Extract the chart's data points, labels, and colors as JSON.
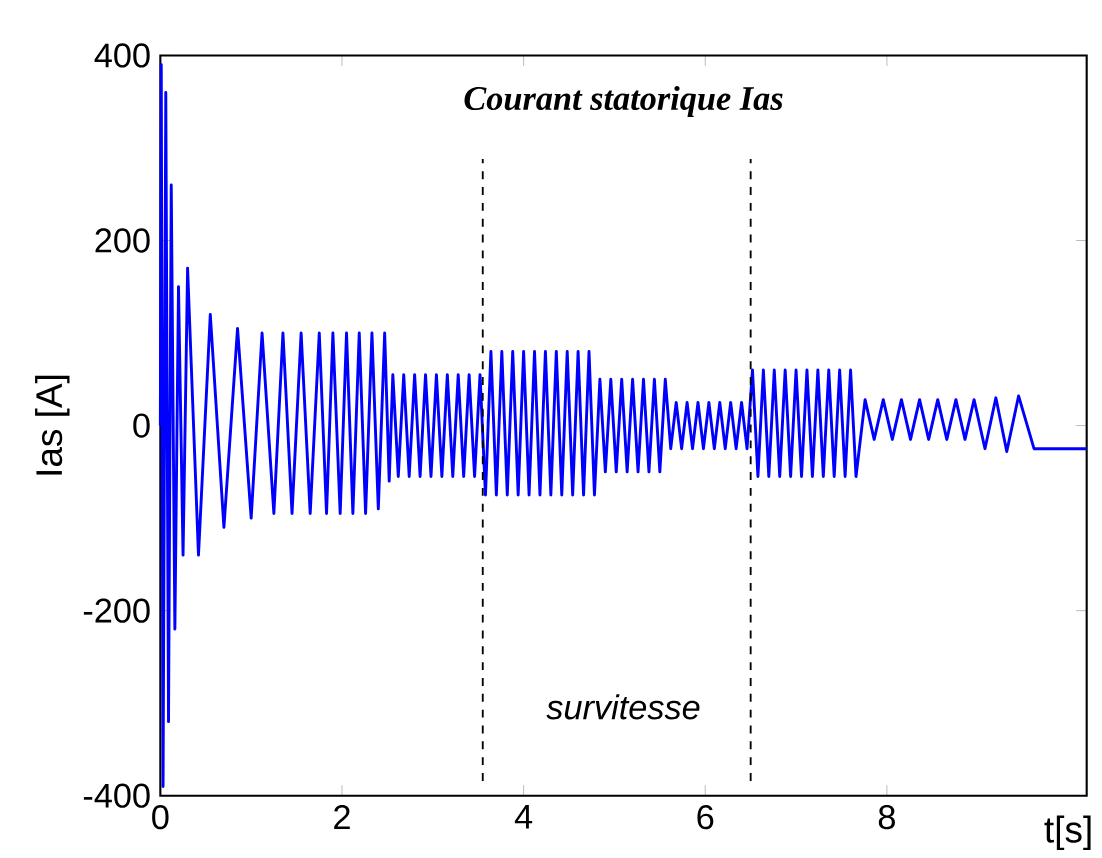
{
  "chart_data": {
    "type": "line",
    "title": "Courant statorique Ias",
    "xlabel": "t[s]",
    "ylabel": "Ias [A]",
    "xlim": [
      0,
      10.2
    ],
    "ylim": [
      -400,
      400
    ],
    "xticks": [
      0,
      2,
      4,
      6,
      8
    ],
    "yticks": [
      -400,
      -200,
      0,
      200,
      400
    ],
    "grid": false,
    "ref_lines": [
      {
        "axis": "x",
        "value": 3.55,
        "color": "#000000",
        "line_style": "dashed"
      },
      {
        "axis": "x",
        "value": 6.5,
        "color": "#000000",
        "line_style": "dashed"
      }
    ],
    "annotations": [
      "survitesse"
    ],
    "series": [
      {
        "color": "#0000ff",
        "x": [
          0,
          0.01,
          0.03,
          0.06,
          0.09,
          0.12,
          0.16,
          0.2,
          0.25,
          0.3,
          0.42,
          0.55,
          0.7,
          0.85,
          1.0,
          1.12,
          1.25,
          1.35,
          1.45,
          1.55,
          1.65,
          1.75,
          1.83,
          1.9,
          1.98,
          2.05,
          2.12,
          2.19,
          2.26,
          2.33,
          2.4,
          2.47,
          2.52,
          2.56,
          2.62,
          2.68,
          2.74,
          2.8,
          2.86,
          2.92,
          2.98,
          3.04,
          3.1,
          3.16,
          3.22,
          3.28,
          3.34,
          3.4,
          3.46,
          3.52,
          3.58,
          3.64,
          3.7,
          3.76,
          3.82,
          3.88,
          3.94,
          4.0,
          4.06,
          4.12,
          4.18,
          4.24,
          4.3,
          4.36,
          4.42,
          4.48,
          4.54,
          4.6,
          4.66,
          4.72,
          4.78,
          4.84,
          4.9,
          4.96,
          5.02,
          5.08,
          5.14,
          5.2,
          5.26,
          5.32,
          5.38,
          5.44,
          5.5,
          5.56,
          5.62,
          5.68,
          5.74,
          5.8,
          5.86,
          5.92,
          5.98,
          6.04,
          6.1,
          6.16,
          6.22,
          6.28,
          6.34,
          6.4,
          6.46,
          6.52,
          6.58,
          6.64,
          6.7,
          6.76,
          6.82,
          6.88,
          6.94,
          7.0,
          7.06,
          7.12,
          7.18,
          7.24,
          7.3,
          7.36,
          7.42,
          7.48,
          7.54,
          7.6,
          7.66,
          7.76,
          7.86,
          7.96,
          8.06,
          8.16,
          8.26,
          8.36,
          8.46,
          8.56,
          8.66,
          8.76,
          8.86,
          8.96,
          9.08,
          9.2,
          9.32,
          9.45,
          9.62,
          9.75,
          10.2
        ],
        "values": [
          0,
          390,
          -390,
          360,
          -320,
          260,
          -220,
          150,
          -140,
          170,
          -140,
          120,
          -110,
          105,
          -100,
          100,
          -95,
          100,
          -95,
          100,
          -95,
          100,
          -95,
          100,
          -95,
          100,
          -95,
          100,
          -95,
          100,
          -90,
          100,
          -60,
          55,
          -55,
          55,
          -55,
          55,
          -55,
          55,
          -55,
          55,
          -55,
          55,
          -55,
          55,
          -55,
          55,
          -55,
          55,
          -75,
          80,
          -75,
          80,
          -75,
          80,
          -75,
          80,
          -75,
          80,
          -75,
          80,
          -75,
          80,
          -75,
          80,
          -75,
          80,
          -75,
          80,
          -75,
          50,
          -50,
          50,
          -50,
          50,
          -50,
          50,
          -50,
          50,
          -50,
          50,
          -50,
          50,
          -25,
          25,
          -25,
          25,
          -25,
          25,
          -25,
          25,
          -25,
          25,
          -25,
          25,
          -25,
          25,
          -25,
          60,
          -55,
          60,
          -55,
          60,
          -55,
          60,
          -55,
          60,
          -55,
          60,
          -55,
          60,
          -55,
          60,
          -55,
          60,
          -55,
          60,
          -55,
          28,
          -15,
          28,
          -15,
          28,
          -15,
          28,
          -15,
          28,
          -15,
          28,
          -15,
          28,
          -25,
          30,
          -28,
          32,
          -25,
          -25,
          -25
        ]
      }
    ]
  }
}
